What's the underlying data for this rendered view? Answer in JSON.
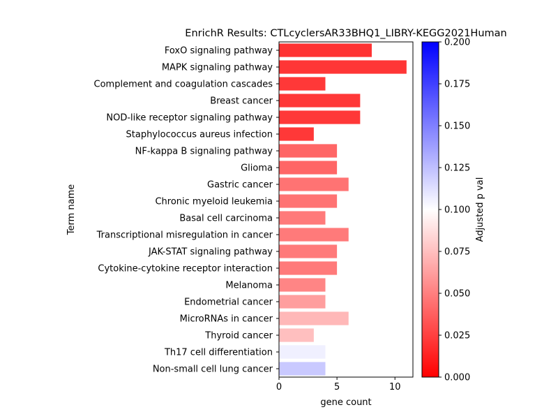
{
  "chart_data": {
    "type": "bar",
    "orientation": "horizontal",
    "title": "EnrichR Results: CTLcyclersAR33BHQ1_LIBRY-KEGG2021Human",
    "xlabel": "gene count",
    "ylabel": "Term name",
    "xlim": [
      0,
      11.55
    ],
    "xticks": [
      0,
      5,
      10
    ],
    "categories": [
      "FoxO signaling pathway",
      "MAPK signaling pathway",
      "Complement and coagulation cascades",
      "Breast cancer",
      "NOD-like receptor signaling pathway",
      "Staphylococcus aureus infection",
      "NF-kappa B signaling pathway",
      "Glioma",
      "Gastric cancer",
      "Chronic myeloid leukemia",
      "Basal cell carcinoma",
      "Transcriptional misregulation in cancer",
      "JAK-STAT signaling pathway",
      "Cytokine-cytokine receptor interaction",
      "Melanoma",
      "Endometrial cancer",
      "MicroRNAs in cancer",
      "Thyroid cancer",
      "Th17 cell differentiation",
      "Non-small cell lung cancer"
    ],
    "values": [
      8,
      11,
      4,
      7,
      7,
      3,
      5,
      5,
      6,
      5,
      4,
      6,
      5,
      5,
      4,
      4,
      6,
      3,
      4,
      4
    ],
    "adjusted_p": [
      0.02,
      0.021,
      0.022,
      0.022,
      0.022,
      0.022,
      0.04,
      0.04,
      0.045,
      0.045,
      0.048,
      0.048,
      0.048,
      0.048,
      0.052,
      0.062,
      0.072,
      0.075,
      0.106,
      0.121
    ],
    "colorbar": {
      "label": "Adjusted p val",
      "range": [
        0,
        0.2
      ],
      "ticks": [
        "0.000",
        "0.025",
        "0.050",
        "0.075",
        "0.100",
        "0.125",
        "0.150",
        "0.175",
        "0.200"
      ],
      "colors": {
        "low": "#ff0000",
        "mid": "#ffffff",
        "high": "#0000ff"
      }
    },
    "grid": false,
    "legend": "none"
  }
}
